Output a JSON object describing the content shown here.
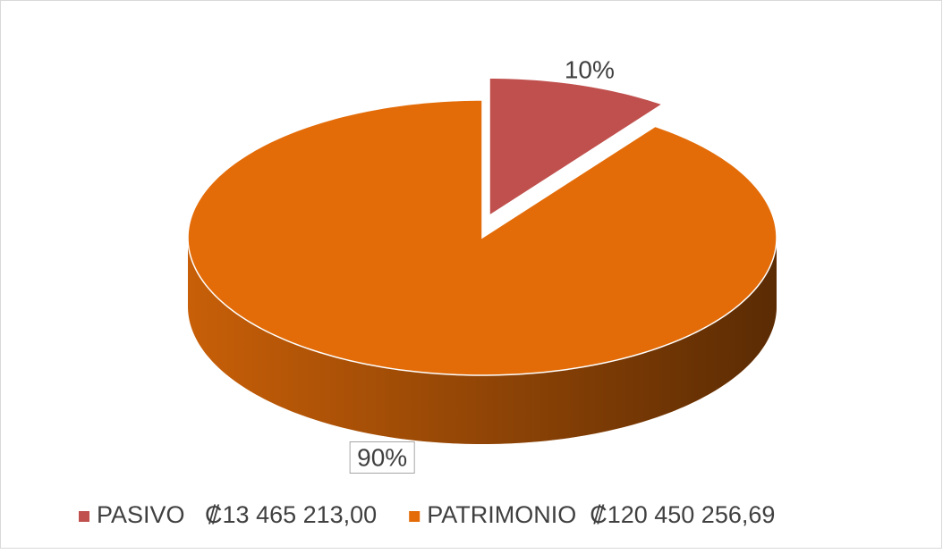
{
  "chart_data": {
    "type": "pie",
    "categories": [
      "PASIVO   ₡13 465 213,00",
      "PATRIMONIO  ₡120 450 256,69"
    ],
    "values": [
      10,
      90
    ],
    "value_labels": [
      "10%",
      "90%"
    ],
    "colors": [
      "#c0504d",
      "#e36c09"
    ],
    "legend": "bottom"
  }
}
